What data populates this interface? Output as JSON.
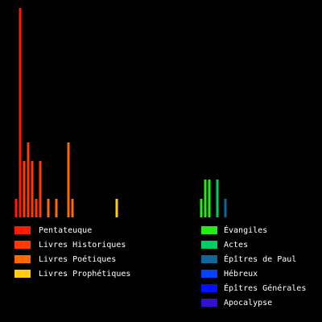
{
  "chart_data": {
    "type": "bar",
    "series": [
      {
        "name": "Pentateuque",
        "color": "#ff1a00"
      },
      {
        "name": "Livres Historiques",
        "color": "#ff3c00"
      },
      {
        "name": "Livres Poétiques",
        "color": "#ff6a00"
      },
      {
        "name": "Livres Prophétiques",
        "color": "#ffcc11"
      },
      {
        "name": "Évangiles",
        "color": "#22ee11"
      },
      {
        "name": "Actes",
        "color": "#00cc66"
      },
      {
        "name": "Épîtres de Paul",
        "color": "#116699"
      },
      {
        "name": "Hébreux",
        "color": "#0044ff"
      },
      {
        "name": "Épîtres Générales",
        "color": "#0011ff"
      },
      {
        "name": "Apocalypse",
        "color": "#3311cc"
      }
    ],
    "values": [
      23,
      260,
      70,
      93,
      70,
      23,
      70,
      0,
      23,
      0,
      23,
      0,
      0,
      93,
      23,
      0,
      0,
      0,
      0,
      0,
      0,
      0,
      0,
      0,
      0,
      23,
      0,
      0,
      0,
      0,
      0,
      0,
      0,
      0,
      0,
      0,
      0,
      0,
      0,
      0,
      0,
      0,
      0,
      0,
      0,
      0,
      23,
      47,
      47,
      0,
      47,
      0,
      23
    ],
    "groups": [
      0,
      0,
      1,
      1,
      1,
      1,
      1,
      null,
      2,
      null,
      2,
      null,
      null,
      2,
      2,
      null,
      null,
      null,
      null,
      null,
      null,
      null,
      null,
      null,
      null,
      3,
      null,
      null,
      null,
      null,
      null,
      null,
      null,
      null,
      null,
      null,
      null,
      null,
      null,
      null,
      null,
      null,
      null,
      null,
      null,
      null,
      4,
      4,
      4,
      null,
      5,
      null,
      6
    ],
    "ylim": [
      0,
      260
    ]
  }
}
